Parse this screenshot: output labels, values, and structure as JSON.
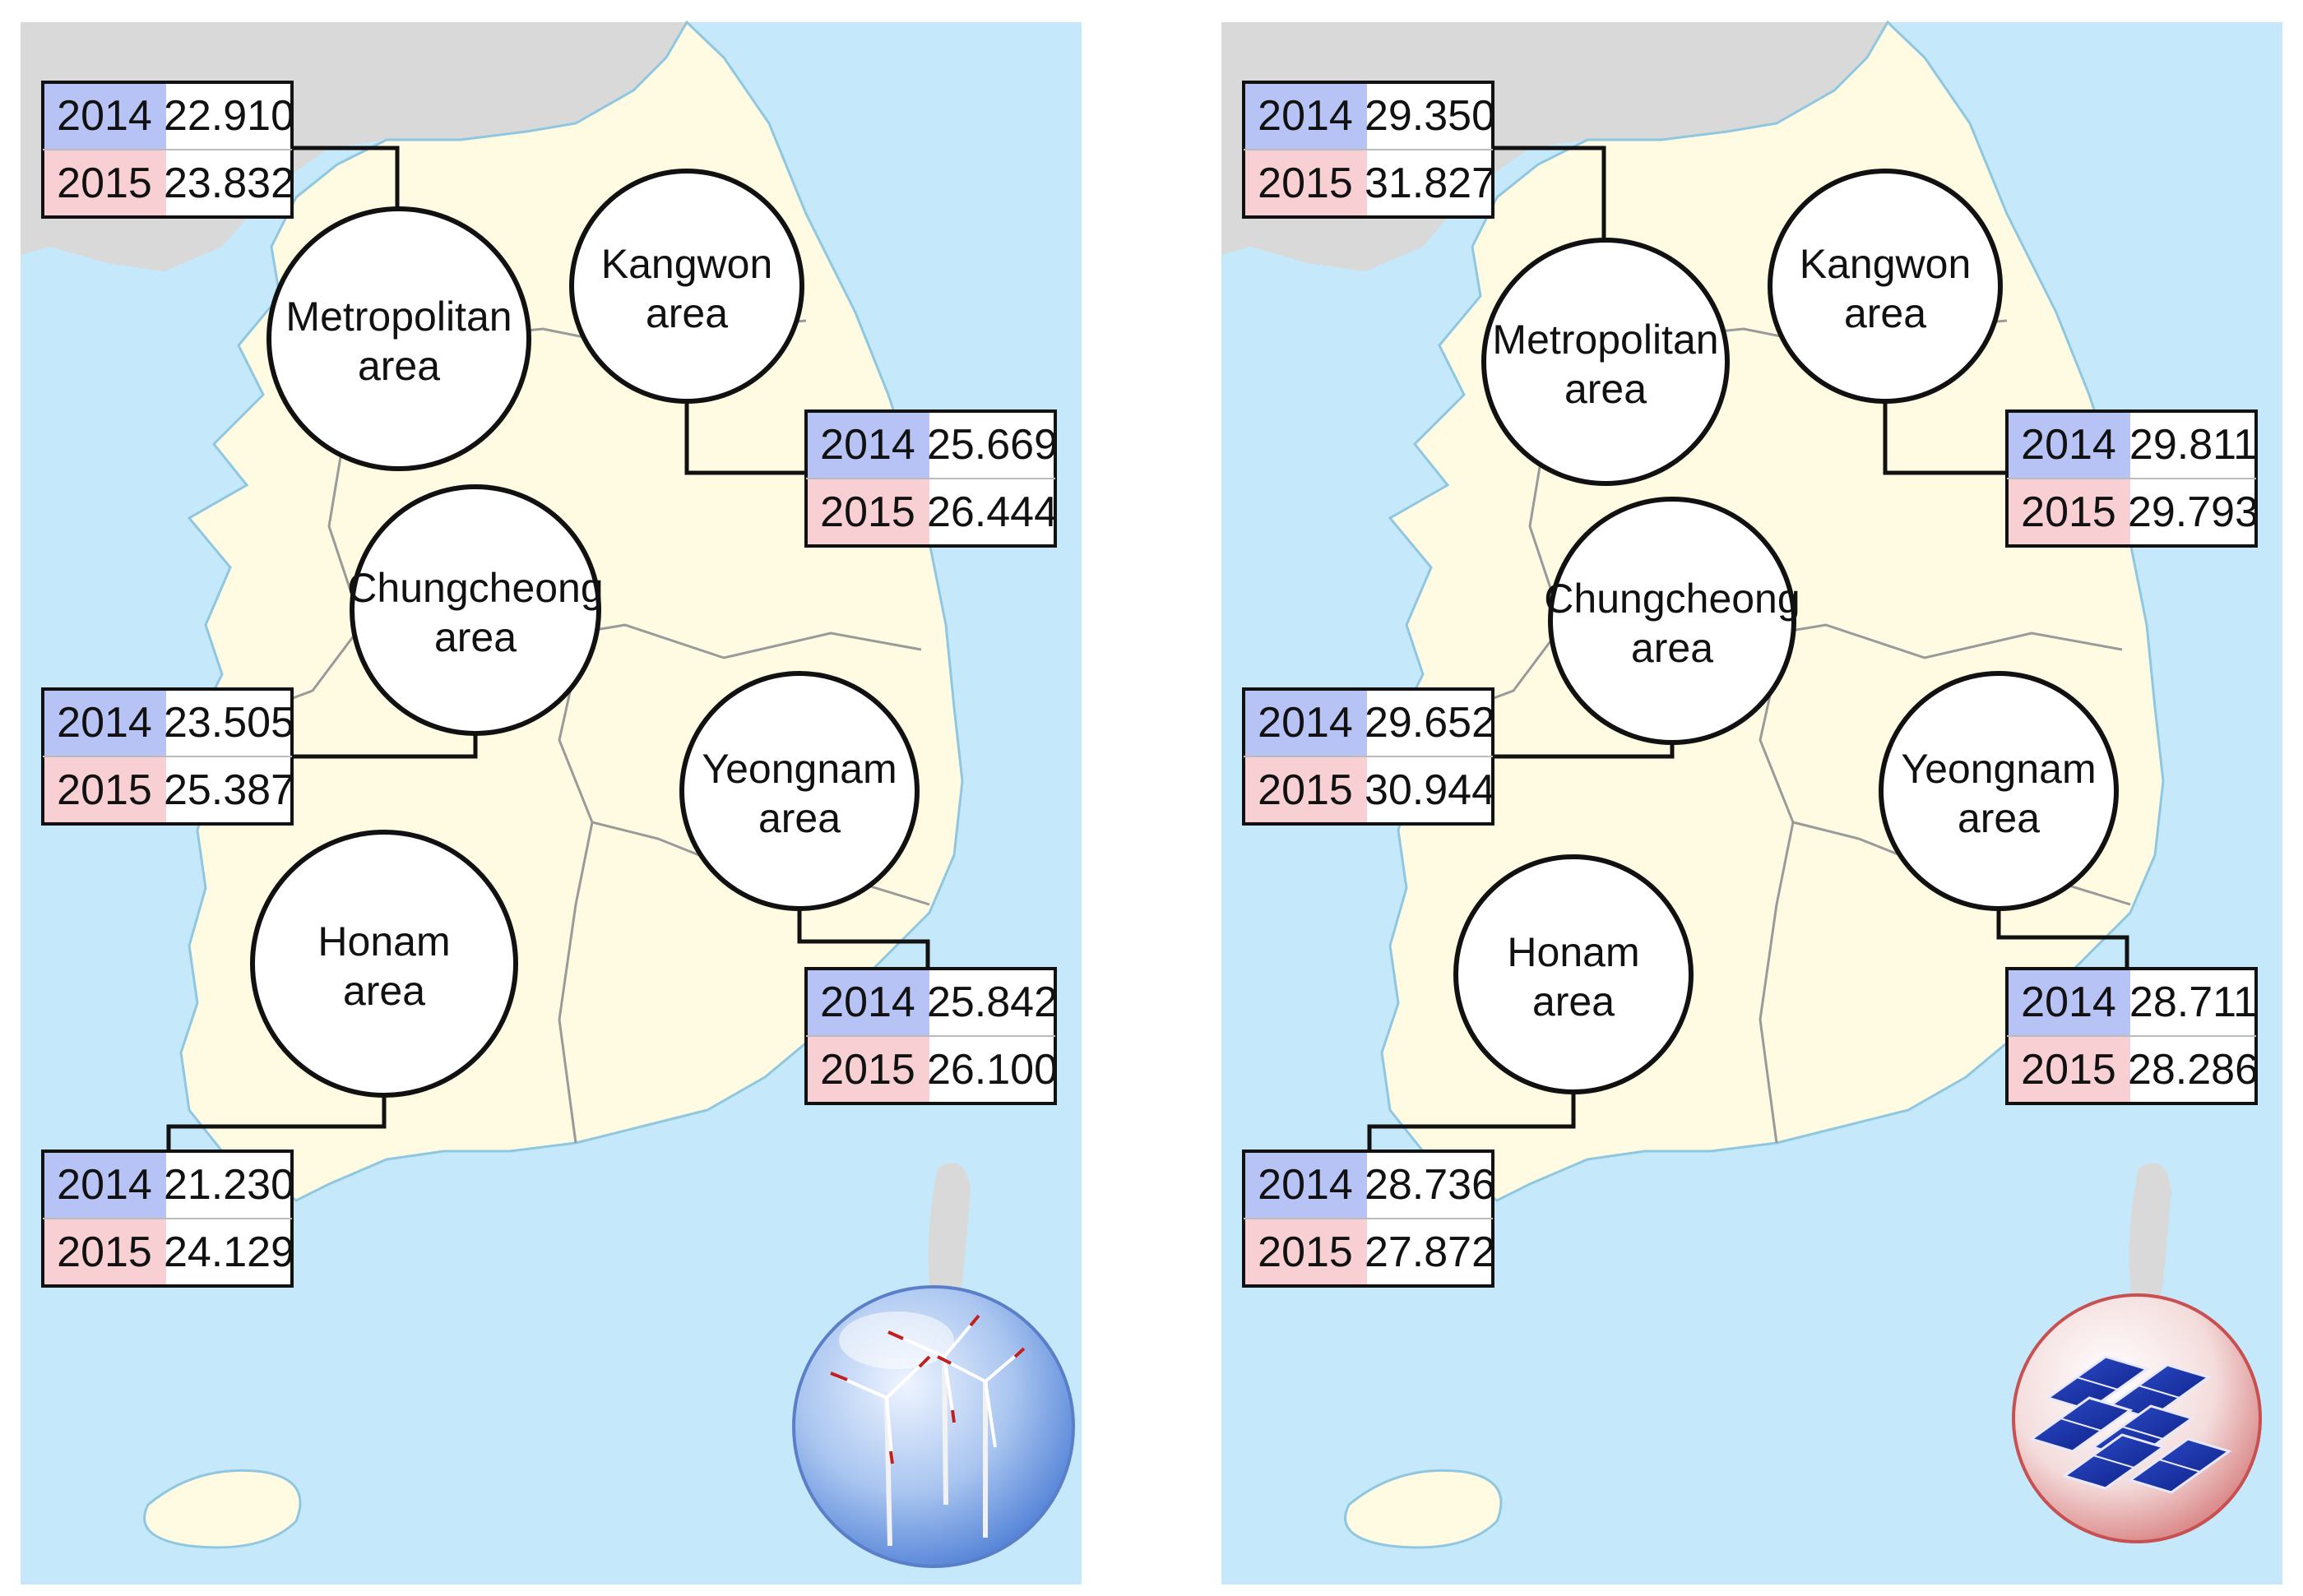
{
  "colors": {
    "sea": "#c5e9fb",
    "land": "#fffbe3",
    "neighbor": "#d9d9d9",
    "row_2014": "#b7c3f4",
    "row_2015": "#f8cfd3",
    "boundary": "#9a9a9a",
    "connector": "#111111"
  },
  "maps": [
    {
      "energy_icon": "wind-turbine-icon",
      "regions": [
        {
          "key": "metropolitan",
          "label_line1": "Metropolitan",
          "label_line2": "area",
          "rows": [
            {
              "year": "2014",
              "value": "22.910"
            },
            {
              "year": "2015",
              "value": "23.832"
            }
          ]
        },
        {
          "key": "kangwon",
          "label_line1": "Kangwon",
          "label_line2": "area",
          "rows": [
            {
              "year": "2014",
              "value": "25.669"
            },
            {
              "year": "2015",
              "value": "26.444"
            }
          ]
        },
        {
          "key": "chungcheong",
          "label_line1": "Chungcheong",
          "label_line2": "area",
          "rows": [
            {
              "year": "2014",
              "value": "23.505"
            },
            {
              "year": "2015",
              "value": "25.387"
            }
          ]
        },
        {
          "key": "yeongnam",
          "label_line1": "Yeongnam",
          "label_line2": "area",
          "rows": [
            {
              "year": "2014",
              "value": "25.842"
            },
            {
              "year": "2015",
              "value": "26.100"
            }
          ]
        },
        {
          "key": "honam",
          "label_line1": "Honam",
          "label_line2": "area",
          "rows": [
            {
              "year": "2014",
              "value": "21.230"
            },
            {
              "year": "2015",
              "value": "24.129"
            }
          ]
        }
      ]
    },
    {
      "energy_icon": "solar-panel-icon",
      "regions": [
        {
          "key": "metropolitan",
          "label_line1": "Metropolitan",
          "label_line2": "area",
          "rows": [
            {
              "year": "2014",
              "value": "29.350"
            },
            {
              "year": "2015",
              "value": "31.827"
            }
          ]
        },
        {
          "key": "kangwon",
          "label_line1": "Kangwon",
          "label_line2": "area",
          "rows": [
            {
              "year": "2014",
              "value": "29.811"
            },
            {
              "year": "2015",
              "value": "29.793"
            }
          ]
        },
        {
          "key": "chungcheong",
          "label_line1": "Chungcheong",
          "label_line2": "area",
          "rows": [
            {
              "year": "2014",
              "value": "29.652"
            },
            {
              "year": "2015",
              "value": "30.944"
            }
          ]
        },
        {
          "key": "yeongnam",
          "label_line1": "Yeongnam",
          "label_line2": "area",
          "rows": [
            {
              "year": "2014",
              "value": "28.711"
            },
            {
              "year": "2015",
              "value": "28.286"
            }
          ]
        },
        {
          "key": "honam",
          "label_line1": "Honam",
          "label_line2": "area",
          "rows": [
            {
              "year": "2014",
              "value": "28.736"
            },
            {
              "year": "2015",
              "value": "27.872"
            }
          ]
        }
      ]
    }
  ]
}
